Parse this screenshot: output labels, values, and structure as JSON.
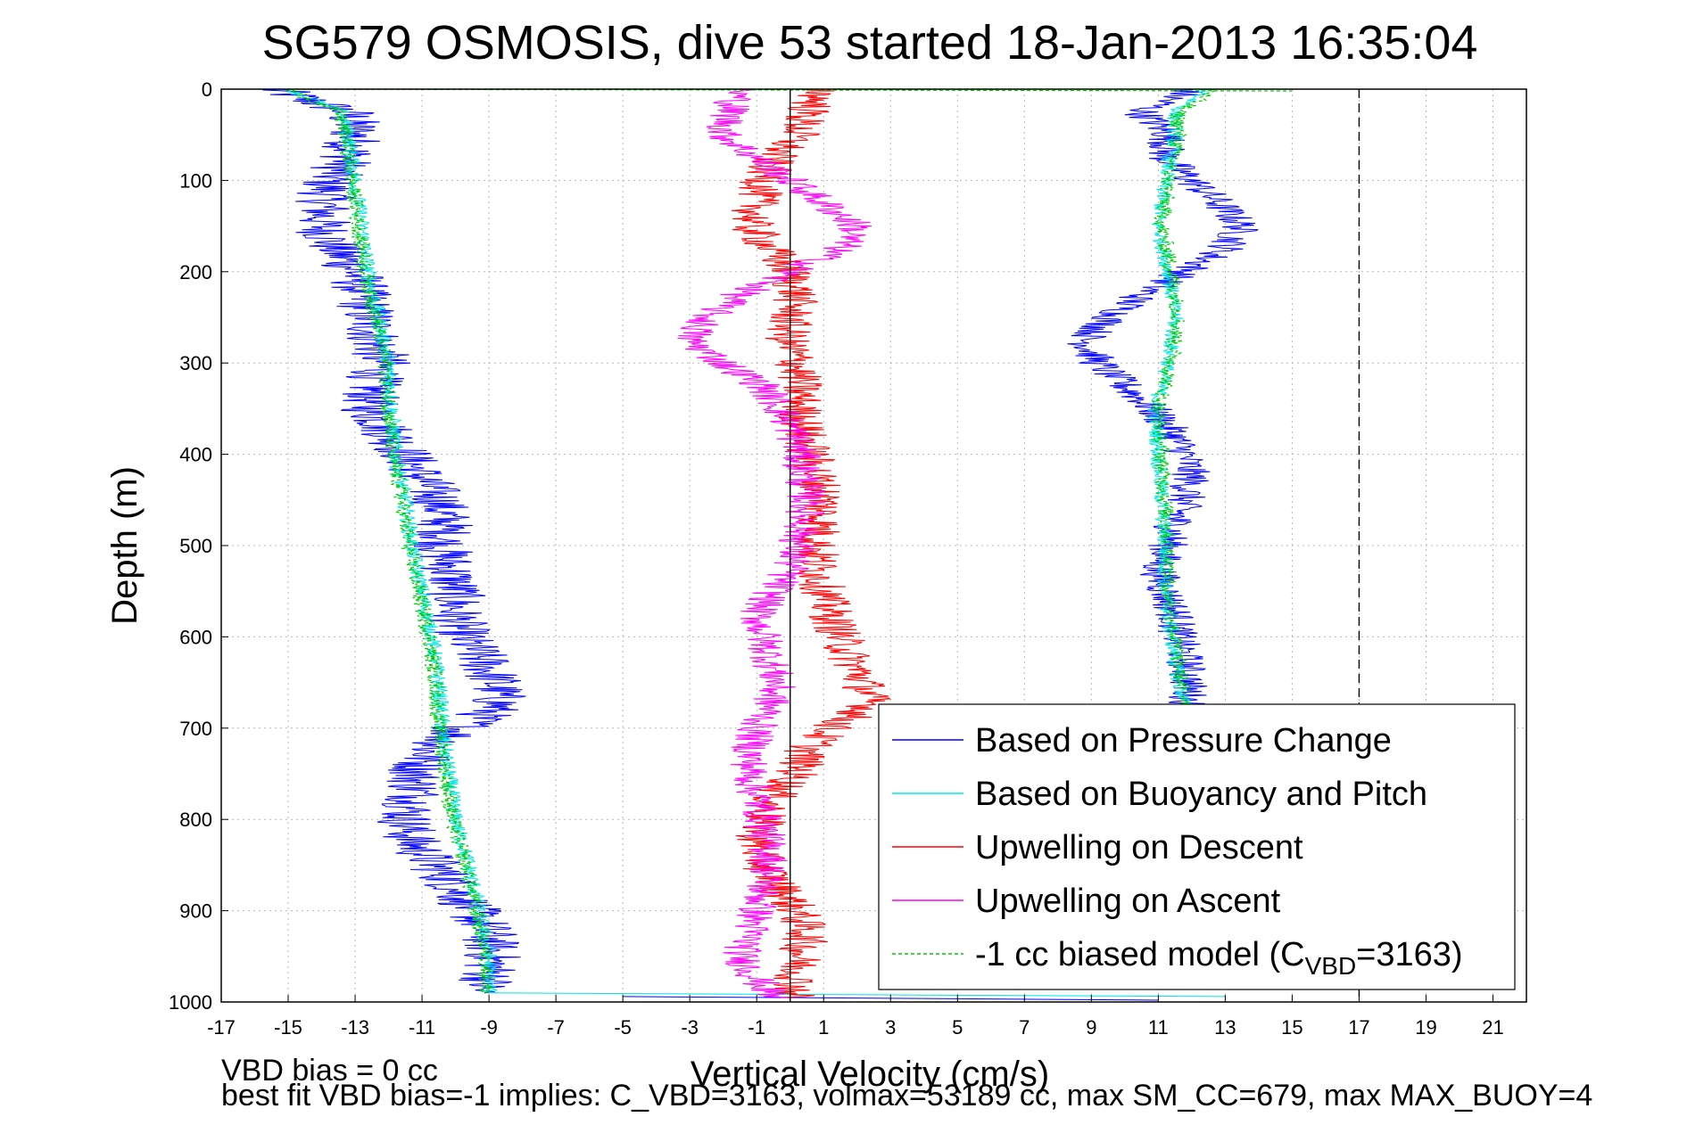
{
  "chart_data": {
    "type": "line",
    "title": "SG579 OSMOSIS, dive 53 started 18-Jan-2013 16:35:04",
    "xlabel": "Vertical Velocity (cm/s)",
    "ylabel": "Depth (m)",
    "xlim": [
      -17,
      22
    ],
    "ylim": [
      0,
      1000
    ],
    "y_reversed": true,
    "grid": true,
    "xticks": [
      -17,
      -15,
      -13,
      -11,
      -9,
      -7,
      -5,
      -3,
      -1,
      1,
      3,
      5,
      7,
      9,
      11,
      13,
      15,
      17,
      19,
      21
    ],
    "yticks": [
      0,
      100,
      200,
      300,
      400,
      500,
      600,
      700,
      800,
      900,
      1000
    ],
    "reference_lines": {
      "zero_line_x": 0,
      "dashed_line_x": 17
    },
    "legend_placement": "bottom-right",
    "series": [
      {
        "name": "Based on Pressure Change",
        "color": "#0000ff",
        "segments": [
          {
            "depth": [
              0,
              25,
              50,
              75,
              100,
              125,
              150,
              175,
              200,
              225,
              250,
              275,
              300,
              325,
              350,
              375,
              400,
              425,
              450,
              475,
              500,
              525,
              550,
              575,
              600,
              625,
              650,
              675,
              700,
              725,
              750,
              775,
              800,
              825,
              850,
              875,
              900,
              925,
              950,
              975,
              990
            ],
            "velocity": [
              -15.5,
              -13.2,
              -13.0,
              -13.2,
              -13.8,
              -13.9,
              -14.0,
              -13.6,
              -13.0,
              -12.8,
              -12.6,
              -12.4,
              -12.2,
              -12.5,
              -12.6,
              -12.0,
              -11.5,
              -11.0,
              -10.5,
              -10.3,
              -10.4,
              -10.2,
              -10.0,
              -10.0,
              -9.8,
              -9.2,
              -8.8,
              -8.7,
              -9.8,
              -10.8,
              -11.2,
              -11.2,
              -11.5,
              -11.3,
              -10.6,
              -10.0,
              -9.5,
              -9.0,
              -8.9,
              -9.0,
              -9.3
            ],
            "noise": 0.9
          },
          {
            "depth": [
              0,
              25,
              50,
              75,
              100,
              125,
              150,
              175,
              200,
              225,
              250,
              275,
              300,
              325,
              350,
              375,
              400,
              425,
              450,
              475,
              500,
              525,
              550,
              575,
              600,
              625,
              650,
              675
            ],
            "velocity": [
              12.0,
              10.5,
              11.3,
              11.2,
              12.0,
              12.8,
              13.5,
              13.0,
              11.8,
              10.5,
              9.6,
              8.8,
              9.2,
              10.0,
              10.8,
              11.4,
              11.8,
              12.0,
              11.8,
              11.5,
              11.3,
              11.0,
              11.2,
              11.5,
              11.6,
              11.8,
              11.9,
              11.9
            ],
            "noise": 0.6
          },
          {
            "depth": [
              994,
              996,
              998
            ],
            "velocity": [
              -5.0,
              3.0,
              11.0
            ],
            "noise": 0
          }
        ]
      },
      {
        "name": "Based on Buoyancy and Pitch",
        "color": "#00e5e5",
        "segments": [
          {
            "depth": [
              0,
              25,
              50,
              100,
              150,
              200,
              250,
              300,
              350,
              400,
              450,
              500,
              550,
              600,
              650,
              700,
              750,
              800,
              850,
              900,
              950,
              990
            ],
            "velocity": [
              -15.0,
              -13.4,
              -13.2,
              -13.0,
              -12.8,
              -12.6,
              -12.3,
              -12.0,
              -11.9,
              -11.8,
              -11.5,
              -11.3,
              -11.0,
              -10.7,
              -10.5,
              -10.4,
              -10.2,
              -10.0,
              -9.6,
              -9.3,
              -9.0,
              -9.0
            ],
            "noise": 0.25
          },
          {
            "depth": [
              0,
              25,
              50,
              100,
              150,
              200,
              250,
              300,
              350,
              400,
              450,
              500,
              550,
              600,
              650,
              675
            ],
            "velocity": [
              12.5,
              11.5,
              11.5,
              11.2,
              11.0,
              11.3,
              11.5,
              11.3,
              10.9,
              11.0,
              11.1,
              11.2,
              11.2,
              11.4,
              11.6,
              11.8
            ],
            "noise": 0.25
          },
          {
            "depth": [
              990,
              992,
              994
            ],
            "velocity": [
              -9.0,
              2.0,
              13.0
            ],
            "noise": 0
          }
        ]
      },
      {
        "name": "Upwelling on Descent",
        "color": "#ff0000",
        "segments": [
          {
            "depth": [
              0,
              25,
              50,
              75,
              100,
              125,
              150,
              175,
              200,
              225,
              250,
              275,
              300,
              325,
              350,
              375,
              400,
              425,
              450,
              475,
              500,
              525,
              550,
              575,
              600,
              625,
              650,
              675,
              700,
              725,
              750,
              775,
              800,
              825,
              850,
              875,
              900,
              925,
              950,
              975,
              995
            ],
            "velocity": [
              1.0,
              0.5,
              0.2,
              -0.5,
              -0.8,
              -1.0,
              -1.2,
              -0.6,
              0.0,
              0.2,
              0.0,
              -0.1,
              0.2,
              0.3,
              0.3,
              0.4,
              0.6,
              0.8,
              1.0,
              0.9,
              0.8,
              0.8,
              1.0,
              1.2,
              1.5,
              1.8,
              2.2,
              2.4,
              1.2,
              0.5,
              0.2,
              -0.5,
              -0.8,
              -1.0,
              -0.8,
              -0.3,
              0.2,
              0.5,
              0.3,
              0.2,
              0.1
            ],
            "noise": 0.7
          }
        ]
      },
      {
        "name": "Upwelling on Ascent",
        "color": "#ff00ff",
        "segments": [
          {
            "depth": [
              0,
              25,
              50,
              75,
              100,
              125,
              150,
              175,
              200,
              225,
              250,
              275,
              300,
              325,
              350,
              375,
              400,
              425,
              450,
              475,
              500,
              525,
              550,
              575,
              600,
              625,
              650,
              675,
              700,
              725,
              750,
              775,
              800,
              825,
              850,
              875,
              900,
              925,
              950,
              975,
              995
            ],
            "velocity": [
              -1.5,
              -1.8,
              -2.0,
              -1.0,
              0.0,
              1.0,
              2.0,
              1.5,
              0.0,
              -1.5,
              -2.5,
              -3.0,
              -2.0,
              -0.8,
              -0.3,
              0.1,
              0.3,
              0.4,
              0.5,
              0.4,
              0.2,
              0.0,
              -0.5,
              -1.0,
              -0.8,
              -0.6,
              -0.4,
              -0.6,
              -1.0,
              -1.2,
              -1.2,
              -1.0,
              -0.8,
              -0.7,
              -0.6,
              -0.8,
              -1.0,
              -1.2,
              -1.5,
              -1.0,
              -0.5
            ],
            "noise": 0.6
          }
        ]
      },
      {
        "name": "-1 cc biased model (C_VBD=3163)",
        "color": "#00cc00",
        "dashed": true,
        "segments": [
          {
            "depth": [
              0,
              25,
              50,
              100,
              150,
              200,
              250,
              300,
              350,
              400,
              450,
              500,
              550,
              600,
              650,
              700,
              750,
              800,
              850,
              900,
              950,
              990
            ],
            "velocity": [
              -15.0,
              -13.5,
              -13.3,
              -13.1,
              -12.9,
              -12.7,
              -12.4,
              -12.1,
              -12.0,
              -11.9,
              -11.6,
              -11.4,
              -11.1,
              -10.8,
              -10.6,
              -10.5,
              -10.3,
              -10.1,
              -9.7,
              -9.4,
              -9.1,
              -9.1
            ],
            "noise": 0.25
          },
          {
            "depth": [
              0,
              25,
              50,
              100,
              150,
              200,
              250,
              300,
              350,
              400,
              450,
              500,
              550,
              600,
              650,
              675
            ],
            "velocity": [
              12.7,
              11.6,
              11.6,
              11.3,
              11.1,
              11.4,
              11.6,
              11.4,
              11.0,
              11.1,
              11.2,
              11.3,
              11.3,
              11.5,
              11.7,
              11.9
            ],
            "noise": 0.25
          },
          {
            "depth": [
              0,
              1,
              2
            ],
            "velocity": [
              -17.0,
              0.0,
              15.0
            ],
            "noise": 0
          }
        ]
      }
    ],
    "legend": [
      {
        "label": "Based on Pressure Change"
      },
      {
        "label": "Based on Buoyancy and Pitch"
      },
      {
        "label": "Upwelling on Descent"
      },
      {
        "label": "Upwelling on Ascent"
      },
      {
        "label_main": "-1 cc biased model (C",
        "label_sub": "VBD",
        "label_end": "=3163)"
      }
    ]
  },
  "footer": {
    "line1": "VBD bias = 0 cc",
    "line2": "best fit VBD bias=-1 implies: C_VBD=3163, volmax=53189 cc, max SM_CC=679, max MAX_BUOY=4"
  }
}
